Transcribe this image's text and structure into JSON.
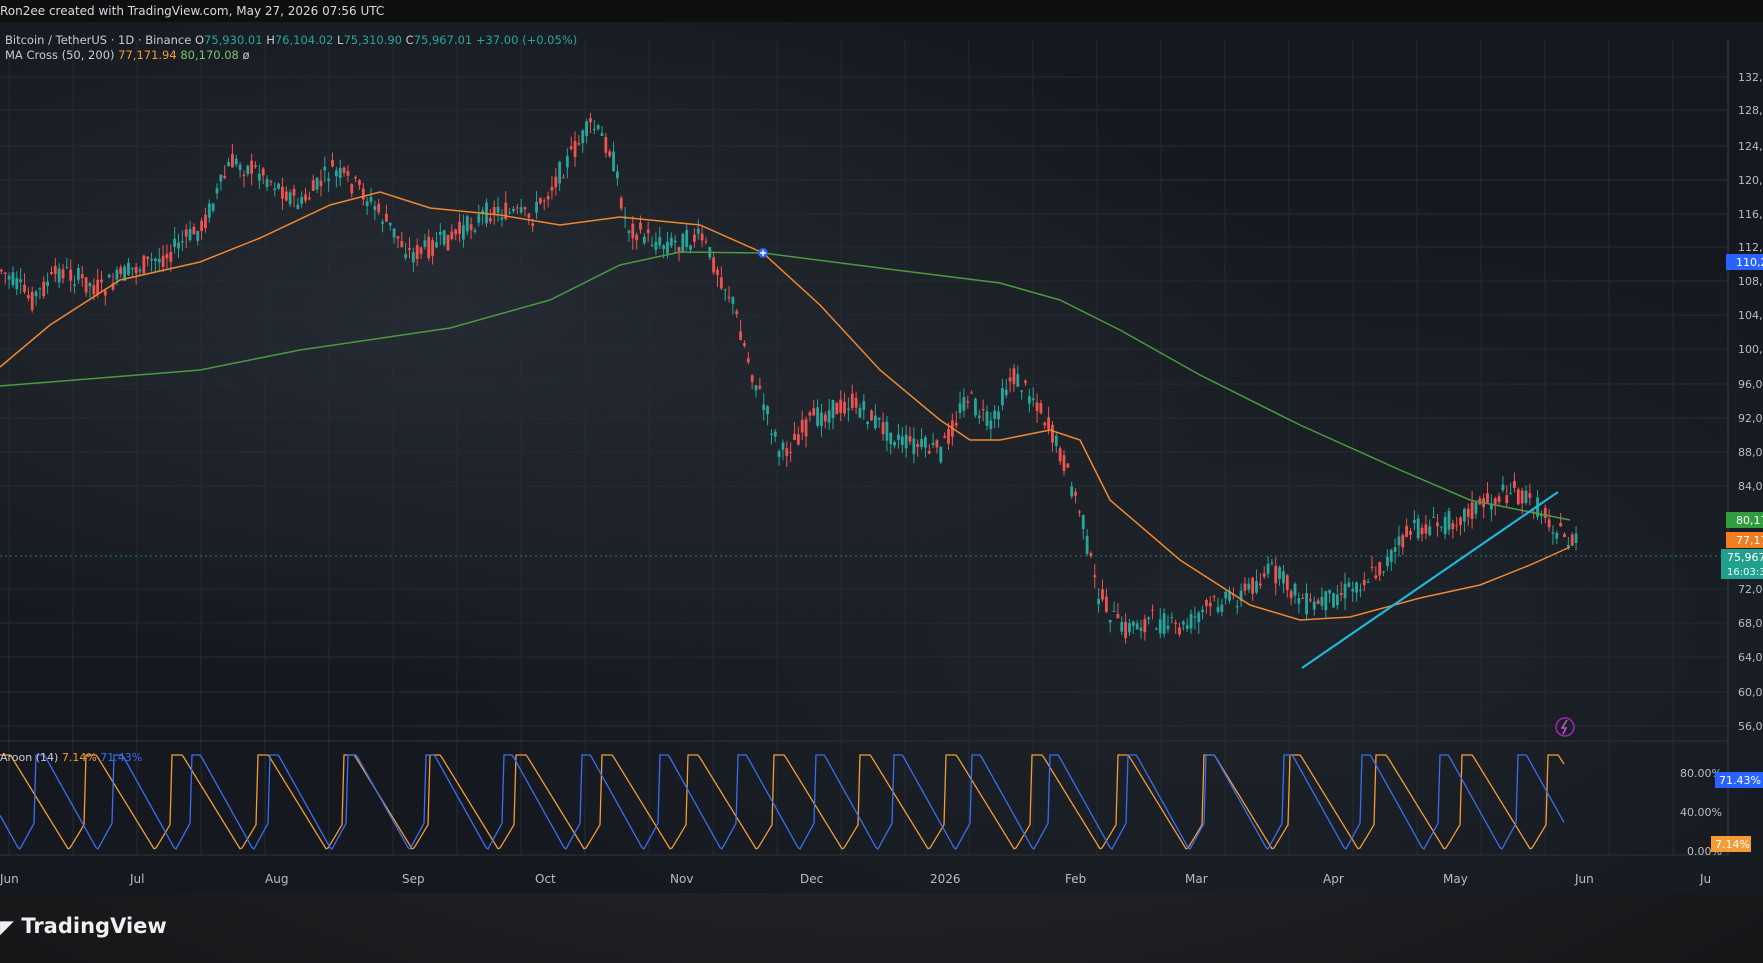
{
  "creator_line": "Ron2ee created with TradingView.com, May 27, 2026 07:56 UTC",
  "symbol": {
    "name": "Bitcoin / TetherUS · 1D · Binance",
    "o_label": "O",
    "o": "75,930.01",
    "h_label": "H",
    "h": "76,104.02",
    "l_label": "L",
    "l": "75,310.90",
    "c_label": "C",
    "c": "75,967.01",
    "change": "+37.00 (+0.05%)"
  },
  "ma_indicator": {
    "name": "MA Cross (50, 200)",
    "value_fast": "77,171.94",
    "value_slow": "80,170.08",
    "settings_icon": "eye-off-icon"
  },
  "oscillator": {
    "name": "Aroon (14)",
    "value_up": "7.14%",
    "value_down": "71.43%"
  },
  "price_axis_labels": [
    "132,",
    "128,",
    "124,",
    "120,",
    "116,",
    "112,0",
    "108,0",
    "104,0",
    "100,0",
    "96,00",
    "92,000",
    "88,000",
    "84,000",
    "72,000",
    "68,000",
    "64,000",
    "60,000",
    "56,000"
  ],
  "price_badges": {
    "blue": "110,2",
    "ma_slow": "80,170",
    "ma_fast": "77,171",
    "last_price": "75,967",
    "countdown": "16:03:3"
  },
  "osc_axis_labels": [
    "80.00%",
    "40.00%",
    "0.00%"
  ],
  "osc_badges": {
    "down": "71.43%",
    "up": "7.14%"
  },
  "time_axis_labels": [
    "Jun",
    "Jul",
    "Aug",
    "Sep",
    "Oct",
    "Nov",
    "Dec",
    "2026",
    "Feb",
    "Mar",
    "Apr",
    "May",
    "Jun",
    "Ju"
  ],
  "branding": "TradingView",
  "colors": {
    "ma_fast": "#f0872f",
    "ma_slow": "#4c9a3f",
    "candle_up": "#26a69a",
    "candle_down": "#ef5350",
    "trendline": "#22b7d8",
    "aroon_up": "#f39c33",
    "aroon_down": "#3a6df0",
    "badge_blue": "#2962ff",
    "badge_green": "#2e9e3f",
    "badge_orange": "#f07d1f",
    "badge_teal": "#22a08e"
  }
}
